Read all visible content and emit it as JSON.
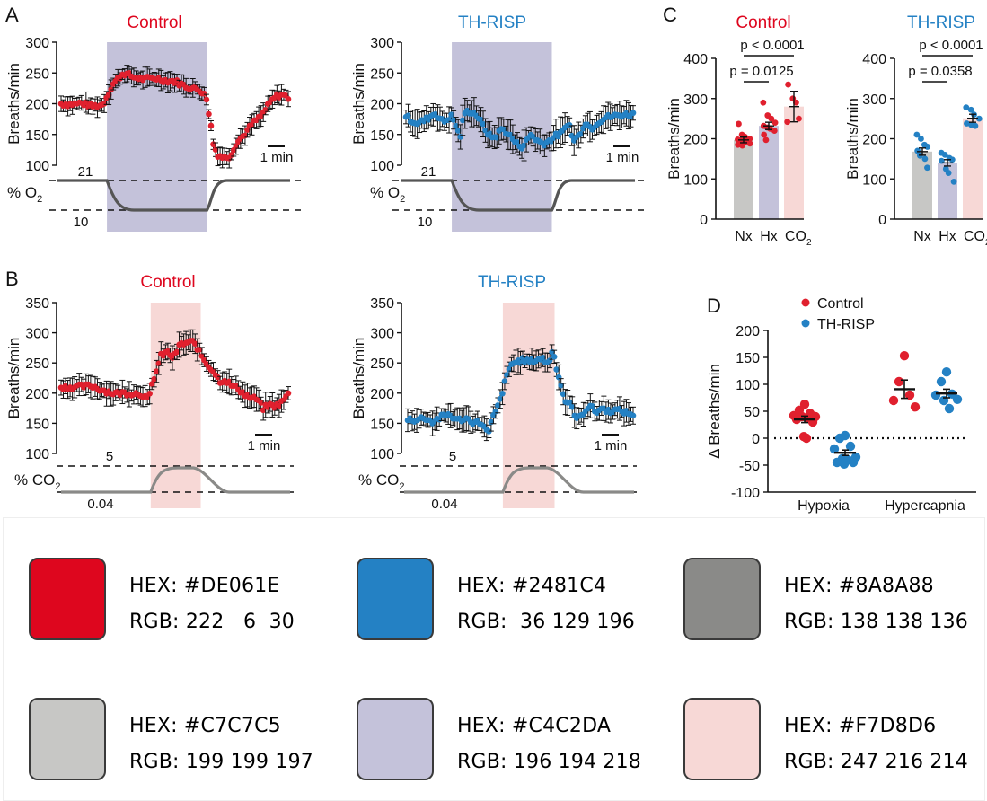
{
  "colors": {
    "control": "#DE061E",
    "control_dot": "#E0202E",
    "th_risp": "#2481C4",
    "gas_o2": "#555555",
    "gas_co2": "#8A8A88",
    "hypoxia_shade": "#C4C2DA",
    "hypercapnia_shade": "#F7D8D6",
    "normoxia_bar": "#C7C7C5",
    "text": "#111111"
  },
  "chart_data": [
    {
      "id": "A-control",
      "panel_label": "A",
      "type": "line",
      "title": "Control",
      "ylabel": "Breaths/min",
      "ylim": [
        100,
        300
      ],
      "yticks": [
        100,
        150,
        200,
        250,
        300
      ],
      "scale_bar": "1 min",
      "stimulus": "hypoxia",
      "gas_label": "% O2",
      "gas_levels": [
        "21",
        "10"
      ],
      "x": "minutes (approx 0-10.5, 1 point per ~0.1 min)",
      "series": [
        {
          "name": "Control",
          "mean_profile": [
            [
              0,
              200
            ],
            [
              0.5,
              199
            ],
            [
              1,
              201
            ],
            [
              1.5,
              196
            ],
            [
              2,
              198
            ],
            [
              2.2,
              212
            ],
            [
              2.5,
              232
            ],
            [
              3,
              250
            ],
            [
              3.5,
              243
            ],
            [
              4,
              240
            ],
            [
              4.5,
              242
            ],
            [
              5,
              238
            ],
            [
              5.5,
              236
            ],
            [
              6,
              228
            ],
            [
              6.5,
              224
            ],
            [
              6.9,
              218
            ],
            [
              7.0,
              200
            ],
            [
              7.15,
              175
            ],
            [
              7.3,
              135
            ],
            [
              7.5,
              118
            ],
            [
              7.8,
              112
            ],
            [
              8.1,
              115
            ],
            [
              8.4,
              135
            ],
            [
              8.8,
              150
            ],
            [
              9.2,
              168
            ],
            [
              9.6,
              180
            ],
            [
              10,
              200
            ],
            [
              10.3,
              212
            ],
            [
              10.6,
              215
            ],
            [
              10.9,
              210
            ]
          ],
          "sem_approx": 12
        }
      ],
      "shade_range": [
        2.2,
        7.0
      ]
    },
    {
      "id": "A-th-risp",
      "type": "line",
      "title": "TH-RISP",
      "ylabel": "Breaths/min",
      "ylim": [
        100,
        300
      ],
      "yticks": [
        100,
        150,
        200,
        250,
        300
      ],
      "scale_bar": "1 min",
      "stimulus": "hypoxia",
      "gas_label": "% O2",
      "gas_levels": [
        "21",
        "10"
      ],
      "series": [
        {
          "name": "TH-RISP",
          "mean_profile": [
            [
              0,
              180
            ],
            [
              0.3,
              172
            ],
            [
              0.6,
              168
            ],
            [
              1,
              175
            ],
            [
              1.4,
              185
            ],
            [
              1.8,
              170
            ],
            [
              2.2,
              180
            ],
            [
              2.4,
              165
            ],
            [
              2.6,
              145
            ],
            [
              2.8,
              185
            ],
            [
              3.1,
              188
            ],
            [
              3.4,
              182
            ],
            [
              3.7,
              165
            ],
            [
              4,
              148
            ],
            [
              4.3,
              145
            ],
            [
              4.6,
              160
            ],
            [
              5,
              148
            ],
            [
              5.3,
              135
            ],
            [
              5.6,
              130
            ],
            [
              6,
              150
            ],
            [
              6.3,
              140
            ],
            [
              6.6,
              135
            ],
            [
              6.9,
              140
            ],
            [
              7.2,
              148
            ],
            [
              7.5,
              152
            ],
            [
              7.8,
              172
            ],
            [
              8,
              140
            ],
            [
              8.3,
              148
            ],
            [
              8.6,
              170
            ],
            [
              8.9,
              160
            ],
            [
              9.2,
              170
            ],
            [
              9.6,
              178
            ],
            [
              10,
              180
            ],
            [
              10.4,
              182
            ],
            [
              10.8,
              183
            ]
          ],
          "sem_approx": 18
        }
      ],
      "shade_range": [
        2.2,
        7.0
      ]
    },
    {
      "id": "B-control",
      "panel_label": "B",
      "type": "line",
      "title": "Control",
      "ylabel": "Breaths/min",
      "ylim": [
        100,
        350
      ],
      "yticks": [
        100,
        150,
        200,
        250,
        300,
        350
      ],
      "scale_bar": "1 min",
      "stimulus": "hypercapnia",
      "gas_label": "% CO2",
      "gas_levels": [
        "5",
        "0.04"
      ],
      "series": [
        {
          "name": "Control",
          "mean_profile": [
            [
              0,
              210
            ],
            [
              0.5,
              210
            ],
            [
              1,
              211
            ],
            [
              1.5,
              212
            ],
            [
              2,
              205
            ],
            [
              2.5,
              200
            ],
            [
              3,
              200
            ],
            [
              3.5,
              200
            ],
            [
              3.9,
              198
            ],
            [
              4.2,
              188
            ],
            [
              4.4,
              220
            ],
            [
              4.6,
              238
            ],
            [
              4.8,
              262
            ],
            [
              5.1,
              268
            ],
            [
              5.4,
              258
            ],
            [
              5.7,
              280
            ],
            [
              6,
              283
            ],
            [
              6.3,
              285
            ],
            [
              6.5,
              278
            ],
            [
              6.7,
              265
            ],
            [
              7,
              248
            ],
            [
              7.3,
              238
            ],
            [
              7.6,
              220
            ],
            [
              7.9,
              222
            ],
            [
              8.2,
              212
            ],
            [
              8.5,
              208
            ],
            [
              8.8,
              198
            ],
            [
              9.1,
              192
            ],
            [
              9.4,
              190
            ],
            [
              9.7,
              175
            ],
            [
              10,
              180
            ],
            [
              10.3,
              178
            ],
            [
              10.6,
              185
            ],
            [
              10.9,
              198
            ]
          ],
          "sem_approx": 15
        }
      ],
      "shade_range": [
        4.3,
        6.7
      ]
    },
    {
      "id": "B-th-risp",
      "type": "line",
      "title": "TH-RISP",
      "ylabel": "Breaths/min",
      "ylim": [
        100,
        350
      ],
      "yticks": [
        100,
        150,
        200,
        250,
        300,
        350
      ],
      "scale_bar": "1 min",
      "stimulus": "hypercapnia",
      "gas_label": "% CO2",
      "gas_levels": [
        "5",
        "0.04"
      ],
      "series": [
        {
          "name": "TH-RISP",
          "mean_profile": [
            [
              0,
              158
            ],
            [
              0.4,
              155
            ],
            [
              0.8,
              160
            ],
            [
              1.2,
              152
            ],
            [
              1.6,
              160
            ],
            [
              2,
              165
            ],
            [
              2.4,
              155
            ],
            [
              2.8,
              158
            ],
            [
              3.2,
              152
            ],
            [
              3.6,
              150
            ],
            [
              3.9,
              132
            ],
            [
              4.1,
              158
            ],
            [
              4.4,
              180
            ],
            [
              4.7,
              218
            ],
            [
              5,
              248
            ],
            [
              5.3,
              252
            ],
            [
              5.6,
              255
            ],
            [
              5.9,
              252
            ],
            [
              6.2,
              255
            ],
            [
              6.5,
              258
            ],
            [
              6.8,
              248
            ],
            [
              7.0,
              272
            ],
            [
              7.2,
              242
            ],
            [
              7.4,
              215
            ],
            [
              7.6,
              188
            ],
            [
              7.9,
              180
            ],
            [
              8.2,
              155
            ],
            [
              8.5,
              168
            ],
            [
              8.8,
              180
            ],
            [
              9.1,
              168
            ],
            [
              9.4,
              175
            ],
            [
              9.7,
              170
            ],
            [
              10,
              172
            ],
            [
              10.4,
              170
            ],
            [
              10.8,
              165
            ]
          ],
          "sem_approx": 15
        }
      ],
      "shade_range": [
        4.6,
        7.1
      ]
    },
    {
      "id": "C-control",
      "panel_label": "C",
      "type": "bar",
      "title": "Control",
      "ylabel": "Breaths/min",
      "ylim": [
        0,
        400
      ],
      "yticks": [
        0,
        100,
        200,
        300,
        400
      ],
      "categories": [
        "Nx",
        "Hx",
        "CO2"
      ],
      "means": [
        197,
        232,
        280
      ],
      "sem": [
        7,
        9,
        38
      ],
      "points": [
        [
          237,
          210,
          205,
          200,
          198,
          195,
          192,
          188,
          185,
          183
        ],
        [
          290,
          258,
          250,
          240,
          232,
          228,
          225,
          220,
          210,
          197
        ],
        [
          335,
          300,
          290,
          250,
          242
        ]
      ],
      "significance": [
        {
          "pair": [
            "Nx",
            "Hx"
          ],
          "label": "p = 0.0125"
        },
        {
          "pair": [
            "Nx",
            "CO2"
          ],
          "label": "p < 0.0001"
        }
      ]
    },
    {
      "id": "C-th-risp",
      "type": "bar",
      "title": "TH-RISP",
      "ylabel": "Breaths/min",
      "ylim": [
        0,
        400
      ],
      "yticks": [
        0,
        100,
        200,
        300,
        400
      ],
      "categories": [
        "Nx",
        "Hx",
        "CO2"
      ],
      "means": [
        168,
        140,
        251
      ],
      "sem": [
        9,
        8,
        10
      ],
      "points": [
        [
          210,
          200,
          185,
          180,
          170,
          158,
          150,
          128
        ],
        [
          165,
          160,
          152,
          148,
          145,
          125,
          115,
          93
        ],
        [
          278,
          272,
          260,
          250,
          238,
          235,
          232
        ]
      ],
      "significance": [
        {
          "pair": [
            "Nx",
            "Hx"
          ],
          "label": "p = 0.0358"
        },
        {
          "pair": [
            "Nx",
            "CO2"
          ],
          "label": "p < 0.0001"
        }
      ]
    },
    {
      "id": "D",
      "panel_label": "D",
      "type": "scatter",
      "ylabel": "Δ Breaths/min",
      "ylim": [
        -100,
        200
      ],
      "yticks": [
        -100,
        -50,
        0,
        50,
        100,
        150,
        200
      ],
      "categories": [
        "Hypoxia",
        "Hypercapnia"
      ],
      "legend": [
        "Control",
        "TH-RISP"
      ],
      "legend_position": "top-left",
      "reference_line": 0,
      "series": [
        {
          "name": "Control",
          "group": "Hypoxia",
          "mean": 35,
          "sem": 6,
          "points": [
            63,
            52,
            46,
            42,
            40,
            40,
            38,
            35,
            30,
            3,
            0
          ]
        },
        {
          "name": "TH-RISP",
          "group": "Hypoxia",
          "mean": -27,
          "sem": 5,
          "points": [
            5,
            0,
            -15,
            -20,
            -35,
            -38,
            -40,
            -45,
            -45,
            -48
          ]
        },
        {
          "name": "Control",
          "group": "Hypercapnia",
          "mean": 91,
          "sem": 17,
          "points": [
            153,
            105,
            80,
            70,
            58
          ]
        },
        {
          "name": "TH-RISP",
          "group": "Hypercapnia",
          "mean": 83,
          "sem": 8,
          "points": [
            123,
            105,
            82,
            80,
            72,
            70,
            55
          ]
        }
      ]
    }
  ],
  "palette": [
    {
      "hex_label": "HEX: #DE061E",
      "rgb_label": "RGB: 222   6  30",
      "color": "#DE061E"
    },
    {
      "hex_label": "HEX: #2481C4",
      "rgb_label": "RGB:  36 129 196",
      "color": "#2481C4"
    },
    {
      "hex_label": "HEX: #8A8A88",
      "rgb_label": "RGB: 138 138 136",
      "color": "#8A8A88"
    },
    {
      "hex_label": "HEX: #C7C7C5",
      "rgb_label": "RGB: 199 199 197",
      "color": "#C7C7C5"
    },
    {
      "hex_label": "HEX: #C4C2DA",
      "rgb_label": "RGB: 196 194 218",
      "color": "#C4C2DA"
    },
    {
      "hex_label": "HEX: #F7D8D6",
      "rgb_label": "RGB: 247 216 214",
      "color": "#F7D8D6"
    }
  ]
}
